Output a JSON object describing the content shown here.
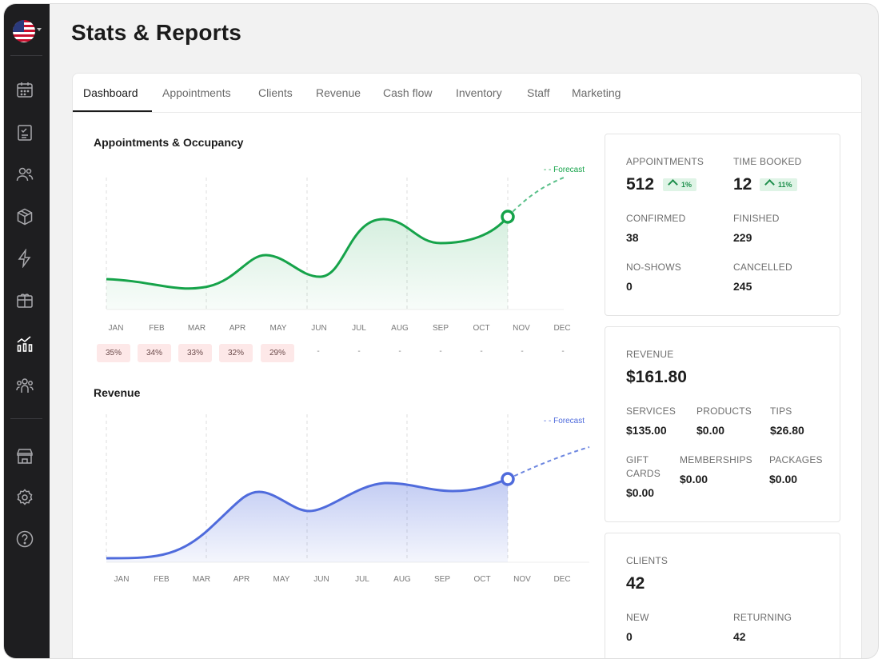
{
  "sidebar": {
    "flag_icon": "us-flag-icon",
    "items": [
      {
        "name": "calendar-icon"
      },
      {
        "name": "checklist-icon"
      },
      {
        "name": "clients-icon"
      },
      {
        "name": "package-icon"
      },
      {
        "name": "lightning-icon"
      },
      {
        "name": "gift-card-icon"
      },
      {
        "name": "stats-icon",
        "active": true
      },
      {
        "name": "team-icon"
      },
      {
        "name": "store-icon"
      },
      {
        "name": "gear-icon"
      },
      {
        "name": "help-icon"
      }
    ]
  },
  "page": {
    "title": "Stats & Reports"
  },
  "tabs": [
    "Dashboard",
    "Appointments",
    "Clients",
    "Revenue",
    "Cash flow",
    "Inventory",
    "Staff",
    "Marketing"
  ],
  "active_tab": "Dashboard",
  "appointments_chart": {
    "title": "Appointments & Occupancy",
    "forecast_label": "- - Forecast",
    "months": [
      "JAN",
      "FEB",
      "MAR",
      "APR",
      "MAY",
      "JUN",
      "JUL",
      "AUG",
      "SEP",
      "OCT",
      "NOV",
      "DEC"
    ],
    "occupancy": [
      "35%",
      "34%",
      "33%",
      "32%",
      "29%",
      "-",
      "-",
      "-",
      "-",
      "-",
      "-",
      "-"
    ],
    "color": "#16a34a"
  },
  "revenue_chart": {
    "title": "Revenue",
    "forecast_label": "- - Forecast",
    "months": [
      "JAN",
      "FEB",
      "MAR",
      "APR",
      "MAY",
      "JUN",
      "JUL",
      "AUG",
      "SEP",
      "OCT",
      "NOV",
      "DEC"
    ],
    "color": "#4f6bdc"
  },
  "stats": {
    "appointments": {
      "label": "APPOINTMENTS",
      "value": "512",
      "change": "1%",
      "time_booked_label": "TIME BOOKED",
      "time_booked": "12",
      "time_booked_change": "11%",
      "confirmed_label": "CONFIRMED",
      "confirmed": "38",
      "finished_label": "FINISHED",
      "finished": "229",
      "noshows_label": "NO-SHOWS",
      "noshows": "0",
      "cancelled_label": "CANCELLED",
      "cancelled": "245"
    },
    "revenue": {
      "label": "REVENUE",
      "value": "$161.80",
      "services_label": "SERVICES",
      "services": "$135.00",
      "products_label": "PRODUCTS",
      "products": "$0.00",
      "tips_label": "TIPS",
      "tips": "$26.80",
      "gift_label_1": "GIFT",
      "gift_label_2": "CARDS",
      "gift": "$0.00",
      "memberships_label": "MEMBERSHIPS",
      "memberships": "$0.00",
      "packages_label": "PACKAGES",
      "packages": "$0.00"
    },
    "clients": {
      "label": "CLIENTS",
      "value": "42",
      "new_label": "NEW",
      "new": "0",
      "returning_label": "RETURNING",
      "returning": "42"
    }
  }
}
